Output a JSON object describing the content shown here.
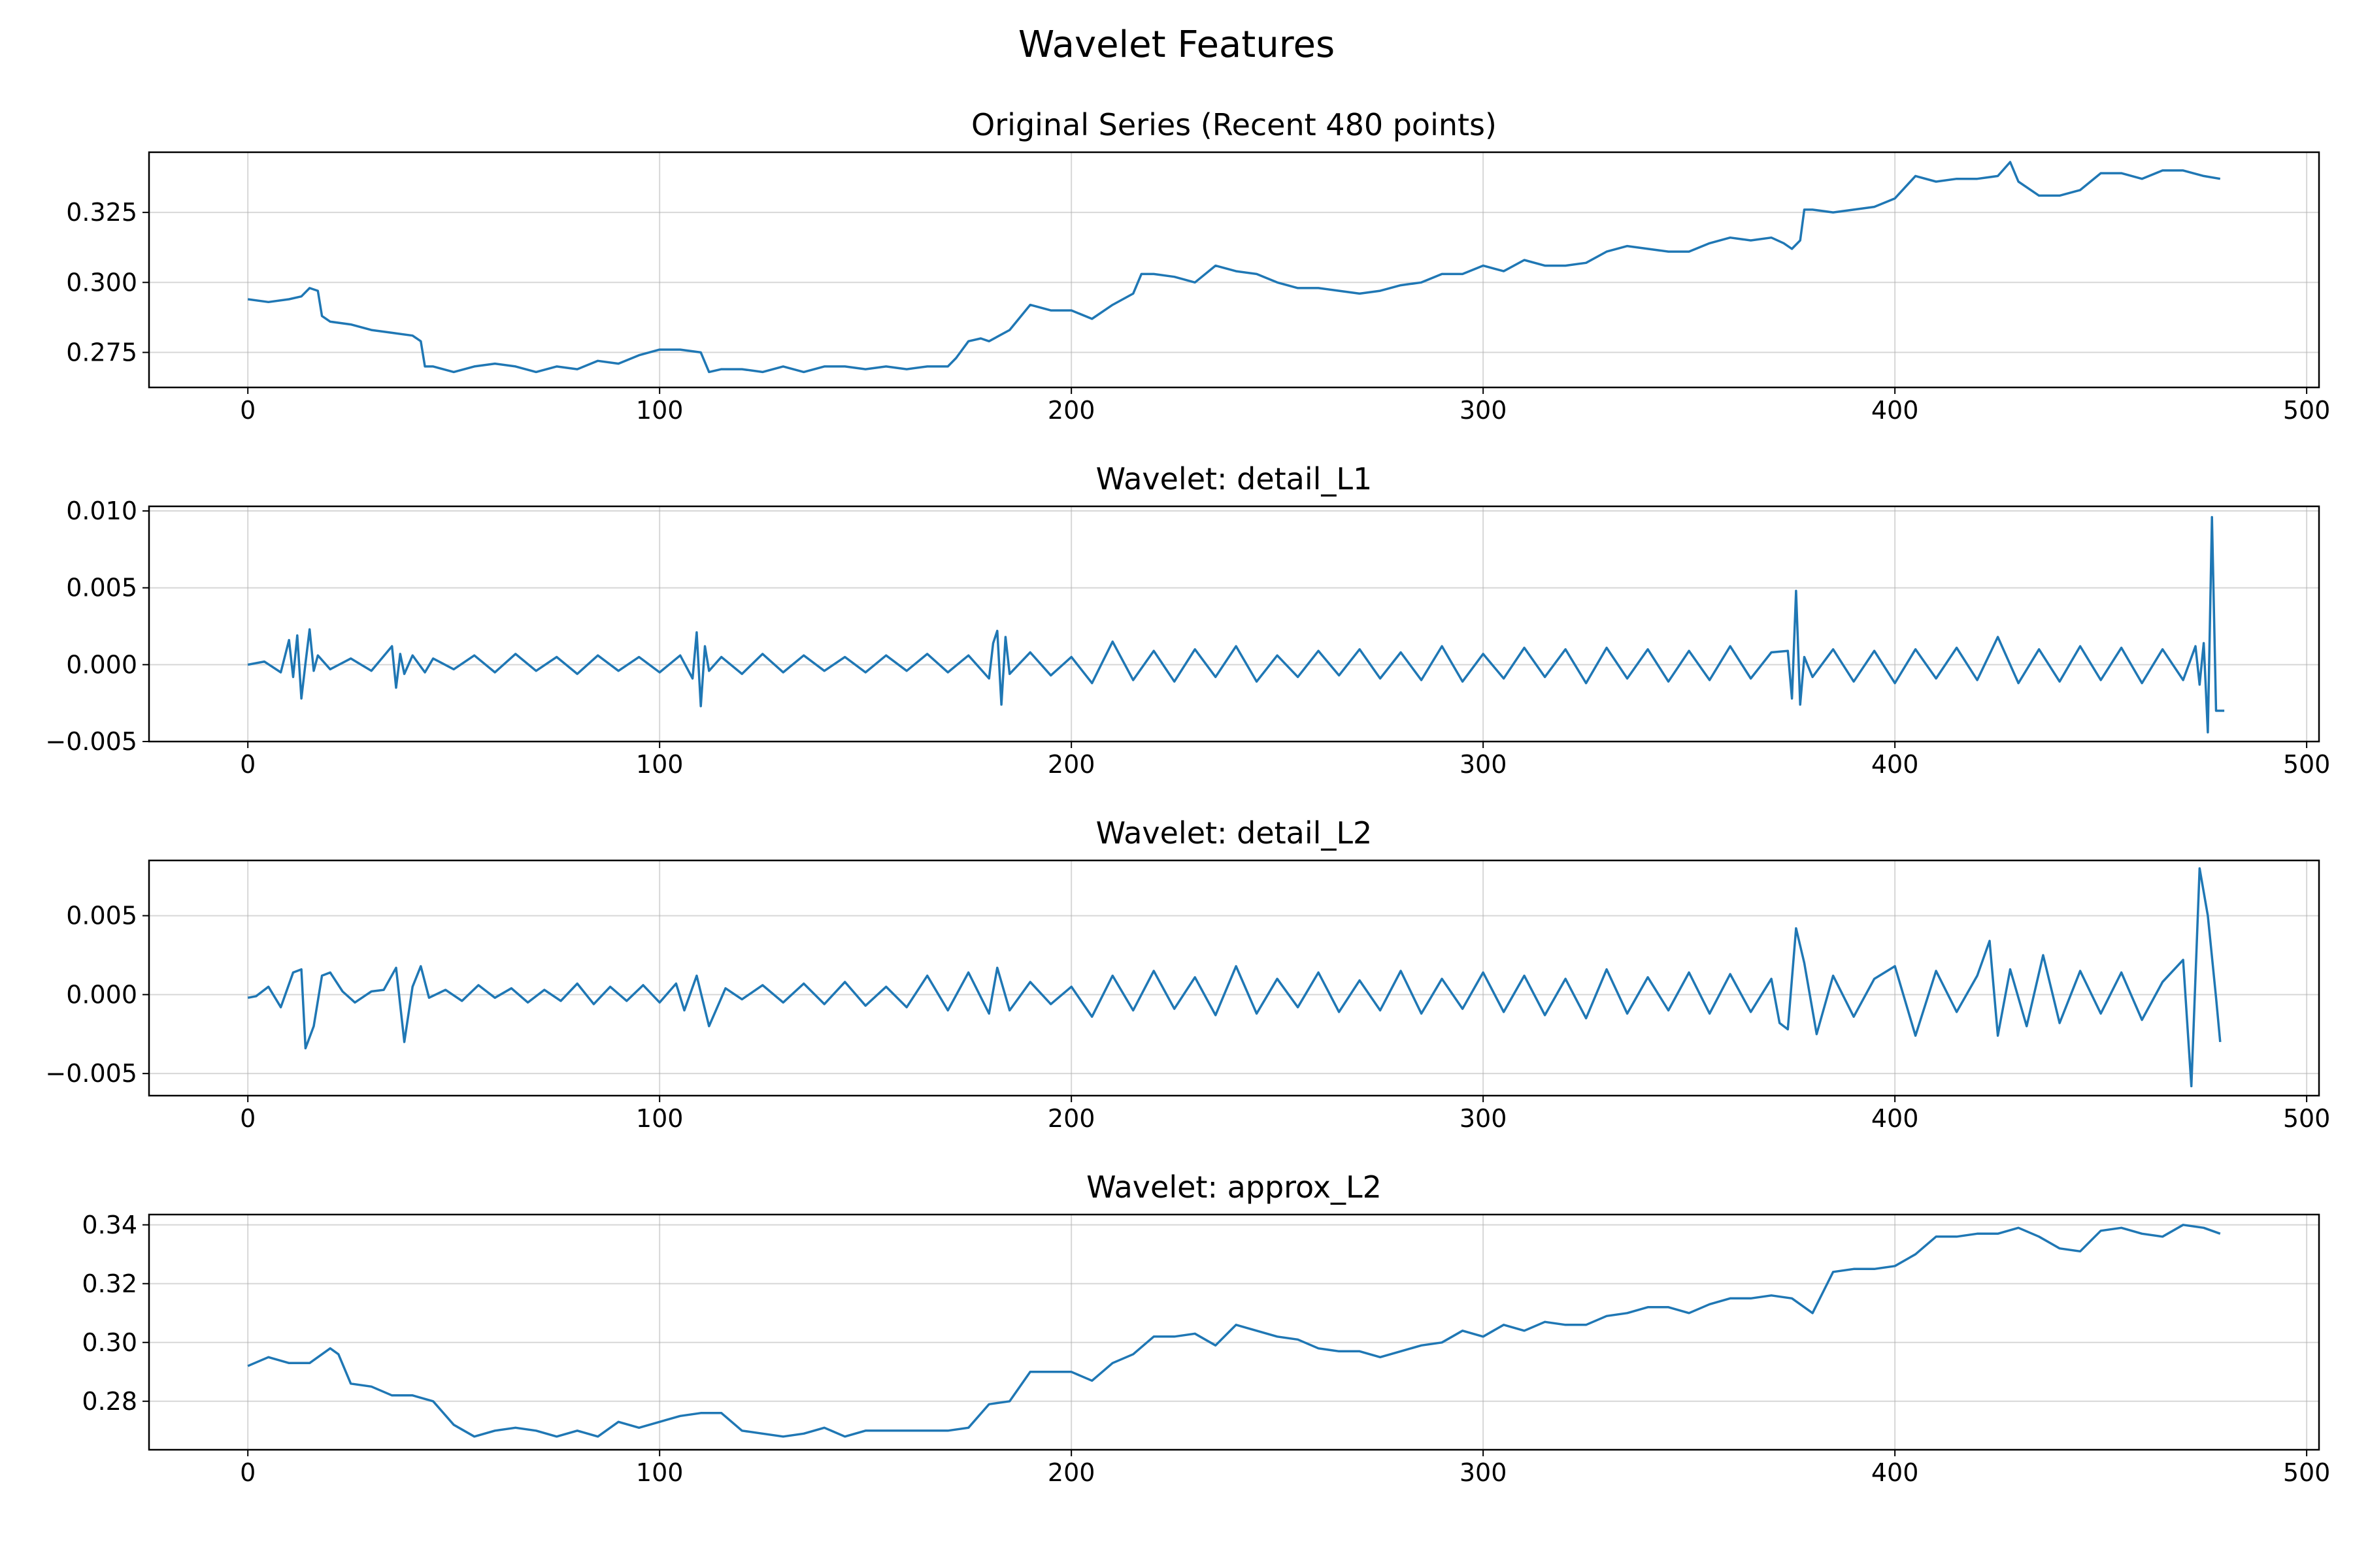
{
  "figure": {
    "title": "Wavelet Features"
  },
  "chart_data": [
    {
      "type": "line",
      "title": "Original Series (Recent 480 points)",
      "xlim": [
        -24,
        503
      ],
      "ylim": [
        0.2625,
        0.3465
      ],
      "xticks": [
        0,
        100,
        200,
        300,
        400,
        500
      ],
      "xtick_labels": [
        "0",
        "100",
        "200",
        "300",
        "400",
        "500"
      ],
      "yticks": [
        0.275,
        0.3,
        0.325
      ],
      "ytick_labels": [
        "0.275",
        "0.300",
        "0.325"
      ],
      "grid": true,
      "color": "#1f77b4",
      "series": [
        {
          "x": [
            0,
            5,
            10,
            13,
            15,
            17,
            18,
            20,
            25,
            30,
            35,
            40,
            42,
            43,
            45,
            50,
            55,
            60,
            65,
            70,
            75,
            80,
            85,
            90,
            95,
            100,
            105,
            110,
            112,
            115,
            120,
            125,
            130,
            135,
            140,
            145,
            150,
            155,
            160,
            165,
            170,
            172,
            175,
            178,
            180,
            185,
            190,
            195,
            200,
            205,
            210,
            215,
            217,
            220,
            225,
            230,
            235,
            240,
            245,
            250,
            255,
            260,
            265,
            270,
            275,
            280,
            285,
            290,
            295,
            300,
            305,
            310,
            315,
            320,
            325,
            330,
            335,
            340,
            345,
            350,
            355,
            360,
            365,
            370,
            373,
            375,
            377,
            378,
            380,
            385,
            390,
            395,
            400,
            405,
            410,
            415,
            420,
            425,
            428,
            430,
            435,
            440,
            445,
            450,
            455,
            460,
            465,
            470,
            475,
            479
          ],
          "y": [
            0.294,
            0.293,
            0.294,
            0.295,
            0.298,
            0.297,
            0.288,
            0.286,
            0.285,
            0.283,
            0.282,
            0.281,
            0.279,
            0.27,
            0.27,
            0.268,
            0.27,
            0.271,
            0.27,
            0.268,
            0.27,
            0.269,
            0.272,
            0.271,
            0.274,
            0.276,
            0.276,
            0.275,
            0.268,
            0.269,
            0.269,
            0.268,
            0.27,
            0.268,
            0.27,
            0.27,
            0.269,
            0.27,
            0.269,
            0.27,
            0.27,
            0.273,
            0.279,
            0.28,
            0.279,
            0.283,
            0.292,
            0.29,
            0.29,
            0.287,
            0.292,
            0.296,
            0.303,
            0.303,
            0.302,
            0.3,
            0.306,
            0.304,
            0.303,
            0.3,
            0.298,
            0.298,
            0.297,
            0.296,
            0.297,
            0.299,
            0.3,
            0.303,
            0.303,
            0.306,
            0.304,
            0.308,
            0.306,
            0.306,
            0.307,
            0.311,
            0.313,
            0.312,
            0.311,
            0.311,
            0.314,
            0.316,
            0.315,
            0.316,
            0.314,
            0.312,
            0.315,
            0.326,
            0.326,
            0.325,
            0.326,
            0.327,
            0.33,
            0.338,
            0.336,
            0.337,
            0.337,
            0.338,
            0.343,
            0.336,
            0.331,
            0.331,
            0.333,
            0.339,
            0.339,
            0.337,
            0.34,
            0.34,
            0.338,
            0.337
          ]
        }
      ]
    },
    {
      "type": "line",
      "title": "Wavelet: detail_L1",
      "xlim": [
        -24,
        503
      ],
      "ylim": [
        -0.005,
        0.0103
      ],
      "xticks": [
        0,
        100,
        200,
        300,
        400,
        500
      ],
      "xtick_labels": [
        "0",
        "100",
        "200",
        "300",
        "400",
        "500"
      ],
      "yticks": [
        -0.005,
        0.0,
        0.005,
        0.01
      ],
      "ytick_labels": [
        "−0.005",
        "0.000",
        "0.005",
        "0.010"
      ],
      "grid": true,
      "color": "#1f77b4",
      "series": [
        {
          "x": [
            0,
            4,
            8,
            10,
            11,
            12,
            13,
            14,
            15,
            16,
            17,
            20,
            25,
            30,
            35,
            36,
            37,
            38,
            40,
            43,
            45,
            50,
            55,
            60,
            65,
            70,
            75,
            80,
            85,
            90,
            95,
            100,
            105,
            108,
            109,
            110,
            111,
            112,
            115,
            120,
            125,
            130,
            135,
            140,
            145,
            150,
            155,
            160,
            165,
            170,
            175,
            180,
            181,
            182,
            183,
            184,
            185,
            190,
            195,
            200,
            205,
            210,
            215,
            220,
            225,
            230,
            235,
            240,
            245,
            250,
            255,
            260,
            265,
            270,
            275,
            280,
            285,
            290,
            295,
            300,
            305,
            310,
            315,
            320,
            325,
            330,
            335,
            340,
            345,
            350,
            355,
            360,
            365,
            370,
            374,
            375,
            376,
            377,
            378,
            380,
            385,
            390,
            395,
            400,
            405,
            410,
            415,
            420,
            425,
            430,
            435,
            440,
            445,
            450,
            455,
            460,
            465,
            470,
            473,
            474,
            475,
            476,
            477,
            478,
            480
          ],
          "y": [
            0,
            0.0002,
            -0.0005,
            0.0016,
            -0.0008,
            0.0019,
            -0.0022,
            0.0001,
            0.0023,
            -0.0004,
            0.0006,
            -0.0003,
            0.0004,
            -0.0004,
            0.0012,
            -0.0015,
            0.0007,
            -0.0006,
            0.0006,
            -0.0005,
            0.0004,
            -0.0003,
            0.0006,
            -0.0005,
            0.0007,
            -0.0004,
            0.0005,
            -0.0006,
            0.0006,
            -0.0004,
            0.0005,
            -0.0005,
            0.0006,
            -0.0009,
            0.0021,
            -0.0027,
            0.0012,
            -0.0004,
            0.0005,
            -0.0006,
            0.0007,
            -0.0005,
            0.0006,
            -0.0004,
            0.0005,
            -0.0005,
            0.0006,
            -0.0004,
            0.0007,
            -0.0005,
            0.0006,
            -0.0009,
            0.0014,
            0.0022,
            -0.0026,
            0.0018,
            -0.0006,
            0.0008,
            -0.0007,
            0.0005,
            -0.0012,
            0.0015,
            -0.001,
            0.0009,
            -0.0011,
            0.001,
            -0.0008,
            0.0012,
            -0.0011,
            0.0006,
            -0.0008,
            0.0009,
            -0.0007,
            0.001,
            -0.0009,
            0.0008,
            -0.001,
            0.0012,
            -0.0011,
            0.0007,
            -0.0009,
            0.0011,
            -0.0008,
            0.001,
            -0.0012,
            0.0011,
            -0.0009,
            0.001,
            -0.0011,
            0.0009,
            -0.001,
            0.0012,
            -0.0009,
            0.0008,
            0.0009,
            -0.0022,
            0.0048,
            -0.0026,
            0.0005,
            -0.0008,
            0.001,
            -0.0011,
            0.0009,
            -0.0012,
            0.001,
            -0.0009,
            0.0011,
            -0.001,
            0.0018,
            -0.0012,
            0.001,
            -0.0011,
            0.0012,
            -0.001,
            0.0011,
            -0.0012,
            0.001,
            -0.001,
            0.0012,
            -0.0013,
            0.0014,
            -0.0044,
            0.0096,
            -0.003,
            -0.003
          ]
        }
      ]
    },
    {
      "type": "line",
      "title": "Wavelet: detail_L2",
      "xlim": [
        -24,
        503
      ],
      "ylim": [
        -0.0064,
        0.0085
      ],
      "xticks": [
        0,
        100,
        200,
        300,
        400,
        500
      ],
      "xtick_labels": [
        "0",
        "100",
        "200",
        "300",
        "400",
        "500"
      ],
      "yticks": [
        -0.005,
        0.0,
        0.005
      ],
      "ytick_labels": [
        "−0.005",
        "0.000",
        "0.005"
      ],
      "grid": true,
      "color": "#1f77b4",
      "series": [
        {
          "x": [
            0,
            2,
            5,
            8,
            11,
            13,
            14,
            16,
            18,
            20,
            23,
            26,
            30,
            33,
            36,
            38,
            40,
            42,
            44,
            48,
            52,
            56,
            60,
            64,
            68,
            72,
            76,
            80,
            84,
            88,
            92,
            96,
            100,
            104,
            106,
            109,
            112,
            116,
            120,
            125,
            130,
            135,
            140,
            145,
            150,
            155,
            160,
            165,
            170,
            175,
            180,
            182,
            185,
            190,
            195,
            200,
            205,
            210,
            215,
            220,
            225,
            230,
            235,
            240,
            245,
            250,
            255,
            260,
            265,
            270,
            275,
            280,
            285,
            290,
            295,
            300,
            305,
            310,
            315,
            320,
            325,
            330,
            335,
            340,
            345,
            350,
            355,
            360,
            365,
            370,
            372,
            374,
            376,
            378,
            381,
            385,
            390,
            395,
            400,
            405,
            410,
            415,
            420,
            423,
            425,
            428,
            432,
            436,
            440,
            445,
            450,
            455,
            460,
            465,
            470,
            472,
            474,
            476,
            478,
            479
          ],
          "y": [
            -0.0002,
            -0.0001,
            0.0005,
            -0.0008,
            0.0014,
            0.0016,
            -0.0034,
            -0.002,
            0.0012,
            0.0014,
            0.0002,
            -0.0005,
            0.0002,
            0.0003,
            0.0017,
            -0.003,
            0.0005,
            0.0018,
            -0.0002,
            0.0003,
            -0.0004,
            0.0006,
            -0.0002,
            0.0004,
            -0.0005,
            0.0003,
            -0.0004,
            0.0007,
            -0.0006,
            0.0005,
            -0.0004,
            0.0006,
            -0.0005,
            0.0007,
            -0.001,
            0.0012,
            -0.002,
            0.0004,
            -0.0003,
            0.0006,
            -0.0005,
            0.0007,
            -0.0006,
            0.0008,
            -0.0007,
            0.0005,
            -0.0008,
            0.0012,
            -0.001,
            0.0014,
            -0.0012,
            0.0017,
            -0.001,
            0.0008,
            -0.0006,
            0.0005,
            -0.0014,
            0.0012,
            -0.001,
            0.0015,
            -0.0009,
            0.0011,
            -0.0013,
            0.0018,
            -0.0012,
            0.001,
            -0.0008,
            0.0014,
            -0.0011,
            0.0009,
            -0.001,
            0.0015,
            -0.0012,
            0.001,
            -0.0009,
            0.0014,
            -0.0011,
            0.0012,
            -0.0013,
            0.001,
            -0.0015,
            0.0016,
            -0.0012,
            0.0011,
            -0.001,
            0.0014,
            -0.0012,
            0.0013,
            -0.0011,
            0.001,
            -0.0018,
            -0.0022,
            0.0042,
            0.002,
            -0.0025,
            0.0012,
            -0.0014,
            0.001,
            0.0018,
            -0.0026,
            0.0015,
            -0.0011,
            0.0012,
            0.0034,
            -0.0026,
            0.0016,
            -0.002,
            0.0025,
            -0.0018,
            0.0015,
            -0.0012,
            0.0014,
            -0.0016,
            0.0008,
            0.0022,
            -0.0058,
            0.008,
            0.005,
            -0.0002,
            -0.003
          ]
        }
      ]
    },
    {
      "type": "line",
      "title": "Wavelet: approx_L2",
      "xlim": [
        -24,
        503
      ],
      "ylim": [
        0.2635,
        0.3435
      ],
      "xticks": [
        0,
        100,
        200,
        300,
        400,
        500
      ],
      "xtick_labels": [
        "0",
        "100",
        "200",
        "300",
        "400",
        "500"
      ],
      "yticks": [
        0.28,
        0.3,
        0.32,
        0.34
      ],
      "ytick_labels": [
        "0.28",
        "0.30",
        "0.32",
        "0.34"
      ],
      "grid": true,
      "color": "#1f77b4",
      "series": [
        {
          "x": [
            0,
            5,
            10,
            15,
            20,
            22,
            25,
            30,
            35,
            40,
            45,
            50,
            55,
            60,
            65,
            70,
            75,
            80,
            85,
            90,
            95,
            100,
            105,
            110,
            115,
            120,
            125,
            130,
            135,
            140,
            145,
            150,
            155,
            160,
            165,
            170,
            175,
            180,
            185,
            190,
            195,
            200,
            205,
            210,
            215,
            220,
            225,
            230,
            235,
            240,
            245,
            250,
            255,
            260,
            265,
            270,
            275,
            280,
            285,
            290,
            295,
            300,
            305,
            310,
            315,
            320,
            325,
            330,
            335,
            340,
            345,
            350,
            355,
            360,
            365,
            370,
            375,
            380,
            385,
            390,
            395,
            400,
            405,
            410,
            415,
            420,
            425,
            430,
            435,
            440,
            445,
            450,
            455,
            460,
            465,
            470,
            475,
            479
          ],
          "y": [
            0.292,
            0.295,
            0.293,
            0.293,
            0.298,
            0.296,
            0.286,
            0.285,
            0.282,
            0.282,
            0.28,
            0.272,
            0.268,
            0.27,
            0.271,
            0.27,
            0.268,
            0.27,
            0.268,
            0.273,
            0.271,
            0.273,
            0.275,
            0.276,
            0.276,
            0.27,
            0.269,
            0.268,
            0.269,
            0.271,
            0.268,
            0.27,
            0.27,
            0.27,
            0.27,
            0.27,
            0.271,
            0.279,
            0.28,
            0.29,
            0.29,
            0.29,
            0.287,
            0.293,
            0.296,
            0.302,
            0.302,
            0.303,
            0.299,
            0.306,
            0.304,
            0.302,
            0.301,
            0.298,
            0.297,
            0.297,
            0.295,
            0.297,
            0.299,
            0.3,
            0.304,
            0.302,
            0.306,
            0.304,
            0.307,
            0.306,
            0.306,
            0.309,
            0.31,
            0.312,
            0.312,
            0.31,
            0.313,
            0.315,
            0.315,
            0.316,
            0.315,
            0.31,
            0.324,
            0.325,
            0.325,
            0.326,
            0.33,
            0.336,
            0.336,
            0.337,
            0.337,
            0.339,
            0.336,
            0.332,
            0.331,
            0.338,
            0.339,
            0.337,
            0.336,
            0.34,
            0.339,
            0.337
          ]
        }
      ]
    }
  ]
}
